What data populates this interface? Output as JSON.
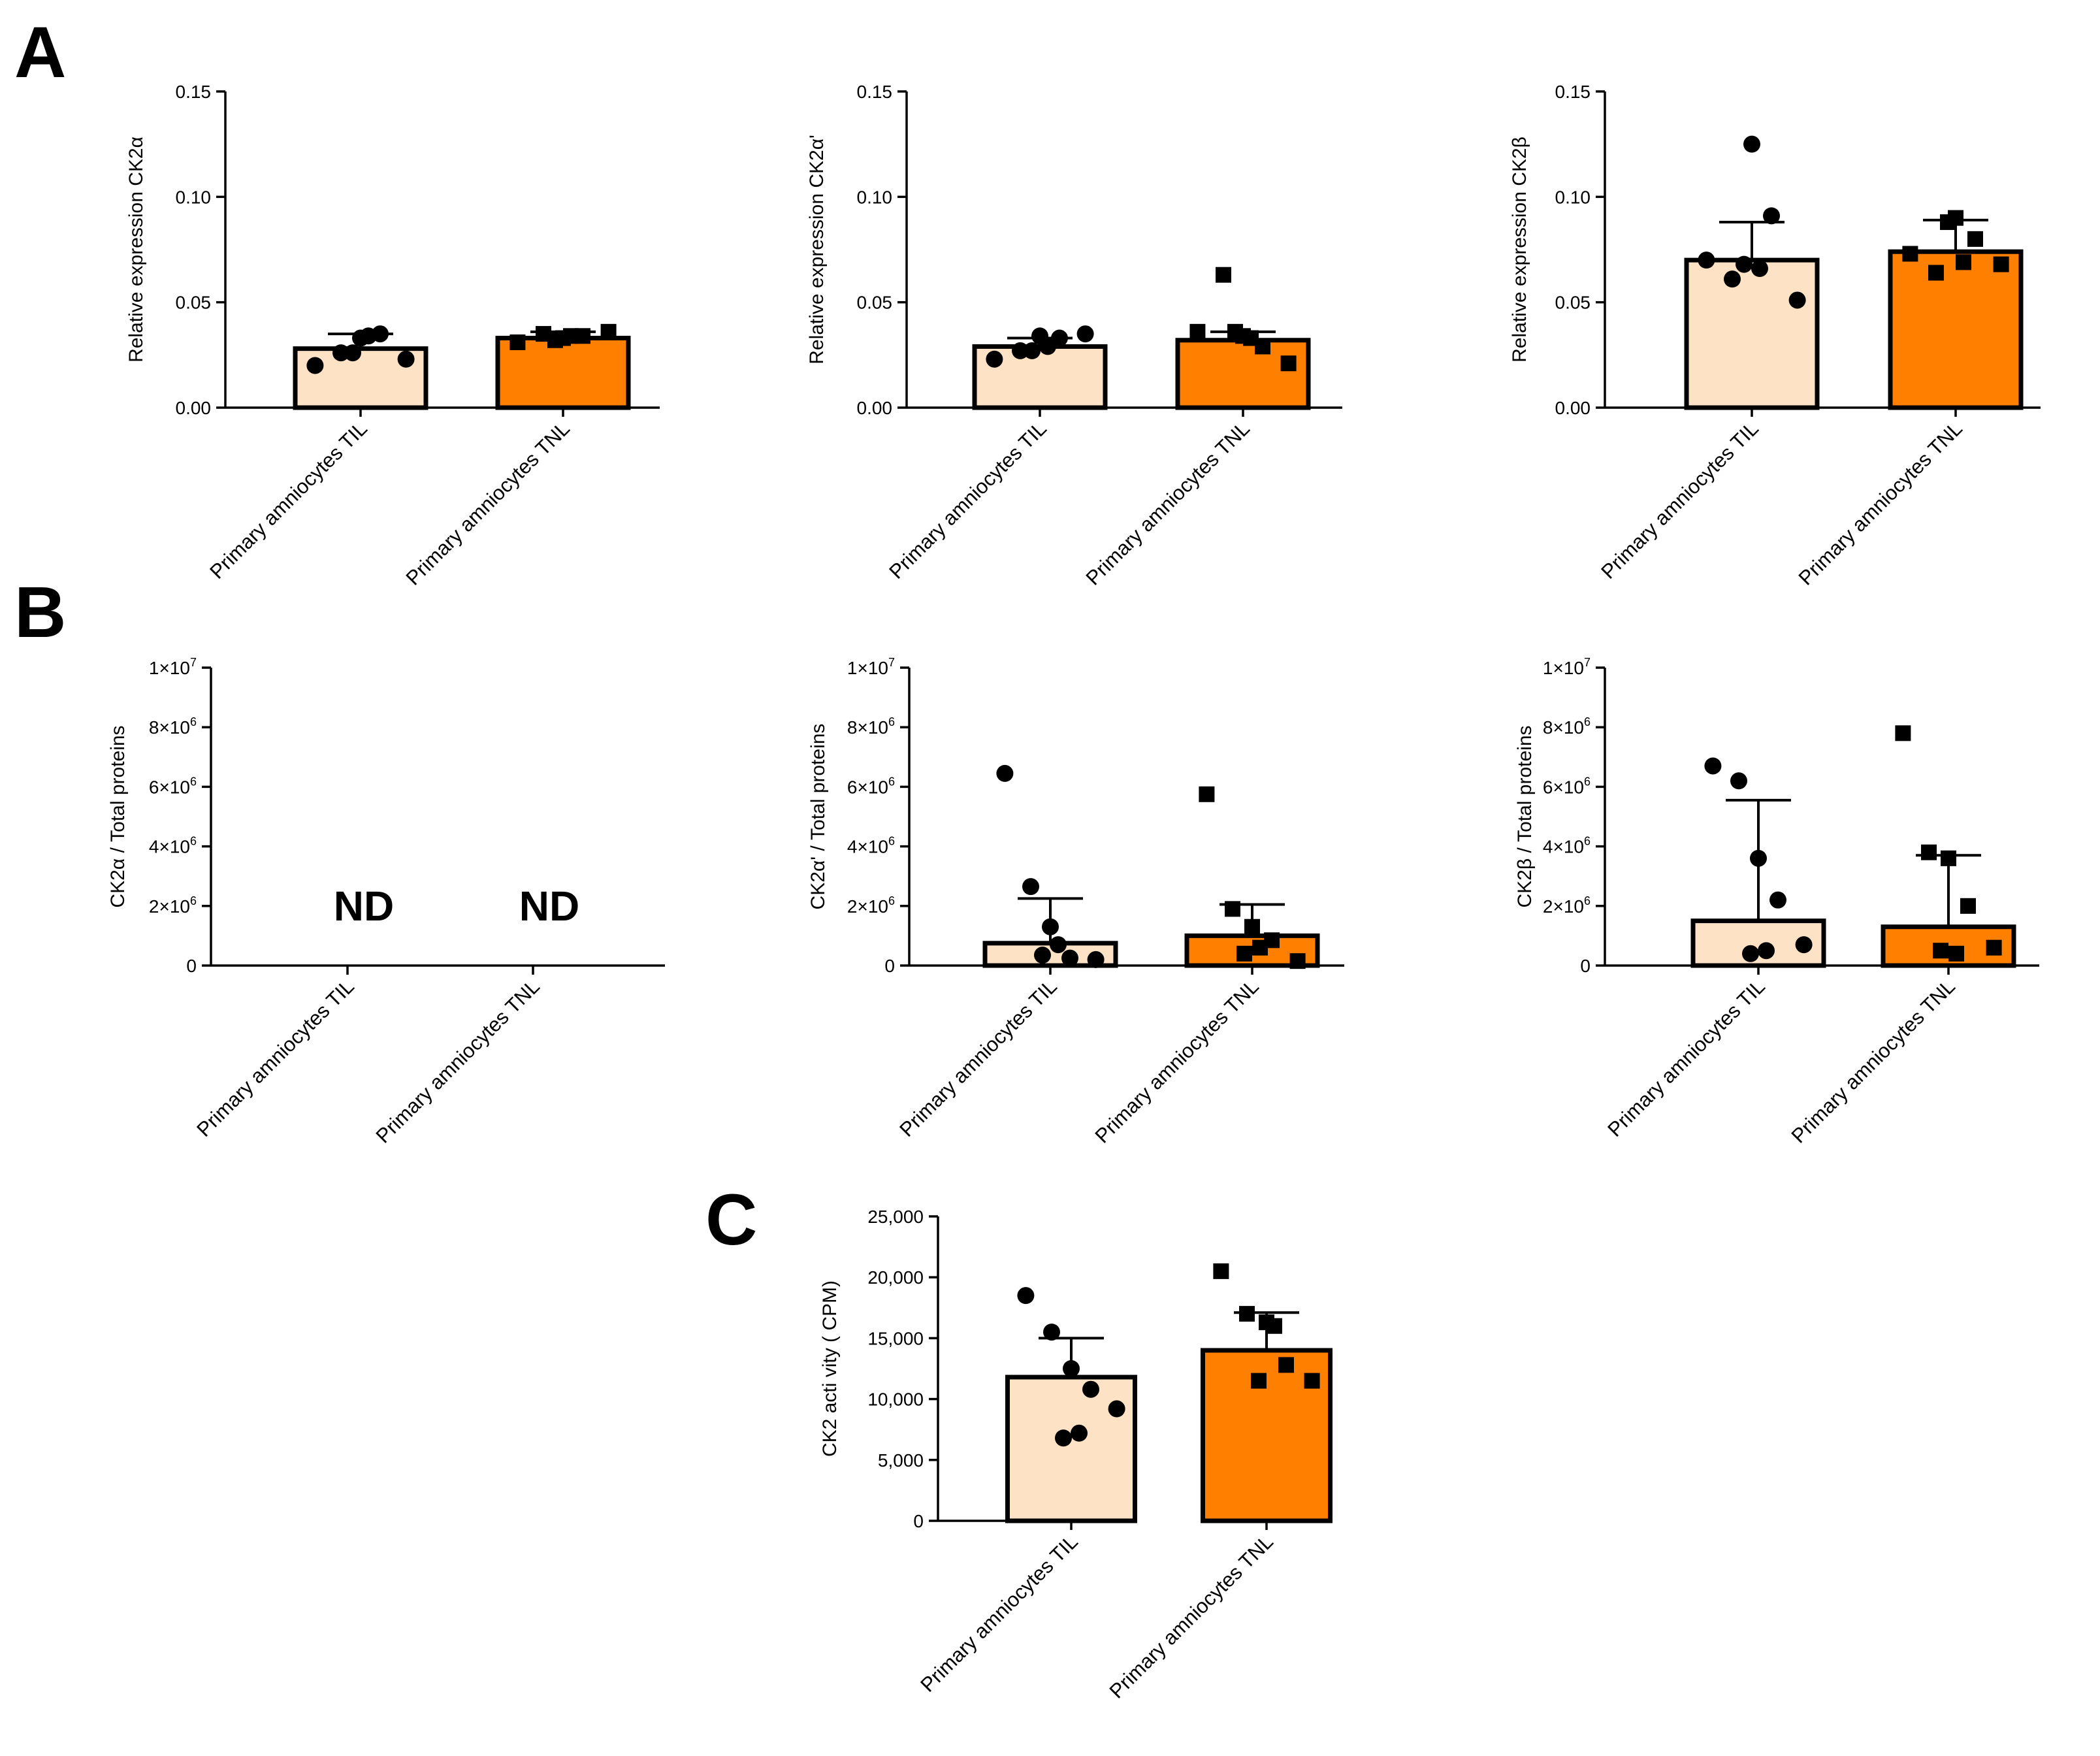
{
  "panels": {
    "A": "A",
    "B": "B",
    "C": "C"
  },
  "colors": {
    "til": "#FDE2C5",
    "tnl": "#FF8000",
    "stroke": "#000000"
  },
  "chart_data": [
    {
      "id": "A1",
      "panel": "A",
      "type": "bar",
      "ylabel": "Relative expression CK2α",
      "ylim": [
        0,
        0.15
      ],
      "yticks": [
        "0.00",
        "0.05",
        "0.10",
        "0.15"
      ],
      "categories": [
        "Primary amniocytes TIL",
        "Primary amniocytes TNL"
      ],
      "bar_colors": [
        "#FDE2C5",
        "#FF8000"
      ],
      "markers": [
        "circle",
        "square"
      ],
      "values": [
        0.028,
        0.033
      ],
      "sd": [
        0.007,
        0.003
      ],
      "points": [
        [
          0.02,
          0.026,
          0.033,
          0.035,
          0.023,
          0.026,
          0.034
        ],
        [
          0.031,
          0.035,
          0.033,
          0.034,
          0.036,
          0.032,
          0.034
        ]
      ]
    },
    {
      "id": "A2",
      "panel": "A",
      "type": "bar",
      "ylabel": "Relative expression CK2α'",
      "ylim": [
        0,
        0.15
      ],
      "yticks": [
        "0.00",
        "0.05",
        "0.10",
        "0.15"
      ],
      "categories": [
        "Primary amniocytes TIL",
        "Primary amniocytes TNL"
      ],
      "bar_colors": [
        "#FDE2C5",
        "#FF8000"
      ],
      "markers": [
        "circle",
        "square"
      ],
      "values": [
        0.029,
        0.032
      ],
      "sd": [
        0.004,
        0.004
      ],
      "points": [
        [
          0.023,
          0.027,
          0.034,
          0.033,
          0.035,
          0.027,
          0.029
        ],
        [
          0.036,
          0.063,
          0.034,
          0.029,
          0.021,
          0.036,
          0.033
        ]
      ]
    },
    {
      "id": "A3",
      "panel": "A",
      "type": "bar",
      "ylabel": "Relative expression CK2β",
      "ylim": [
        0,
        0.15
      ],
      "yticks": [
        "0.00",
        "0.05",
        "0.10",
        "0.15"
      ],
      "categories": [
        "Primary amniocytes TIL",
        "Primary amniocytes TNL"
      ],
      "bar_colors": [
        "#FDE2C5",
        "#FF8000"
      ],
      "markers": [
        "circle",
        "square"
      ],
      "values": [
        0.07,
        0.074
      ],
      "sd": [
        0.018,
        0.015
      ],
      "points": [
        [
          0.07,
          0.061,
          0.125,
          0.091,
          0.051,
          0.068,
          0.066
        ],
        [
          0.073,
          0.064,
          0.09,
          0.08,
          0.068,
          0.088,
          0.069
        ]
      ]
    },
    {
      "id": "B1",
      "panel": "B",
      "type": "bar",
      "ylabel": "CK2α / Total proteins",
      "ylim": [
        0,
        10000000
      ],
      "yticks": [
        "0",
        "2×10⁶",
        "4×10⁶",
        "6×10⁶",
        "8×10⁶",
        "1×10⁷"
      ],
      "categories": [
        "Primary amniocytes TIL",
        "Primary amniocytes TNL"
      ],
      "not_detected": true,
      "nd_label": "ND"
    },
    {
      "id": "B2",
      "panel": "B",
      "type": "bar",
      "ylabel": "CK2α' / Total proteins",
      "ylim": [
        0,
        10000000
      ],
      "yticks": [
        "0",
        "2×10⁶",
        "4×10⁶",
        "6×10⁶",
        "8×10⁶",
        "1×10⁷"
      ],
      "categories": [
        "Primary amniocytes TIL",
        "Primary amniocytes TNL"
      ],
      "bar_colors": [
        "#FDE2C5",
        "#FF8000"
      ],
      "markers": [
        "circle",
        "square"
      ],
      "values": [
        750000,
        1000000
      ],
      "sd": [
        1500000,
        1050000
      ],
      "points": [
        [
          6450000,
          2650000,
          1300000,
          250000,
          200000,
          350000,
          700000
        ],
        [
          5750000,
          1900000,
          1300000,
          850000,
          150000,
          400000,
          600000
        ]
      ]
    },
    {
      "id": "B3",
      "panel": "B",
      "type": "bar",
      "ylabel": "CK2β / Total proteins",
      "ylim": [
        0,
        10000000
      ],
      "yticks": [
        "0",
        "2×10⁶",
        "4×10⁶",
        "6×10⁶",
        "8×10⁶",
        "1×10⁷"
      ],
      "categories": [
        "Primary amniocytes TIL",
        "Primary amniocytes TNL"
      ],
      "bar_colors": [
        "#FDE2C5",
        "#FF8000"
      ],
      "markers": [
        "circle",
        "square"
      ],
      "values": [
        1500000,
        1300000
      ],
      "sd": [
        4050000,
        2400000
      ],
      "points": [
        [
          6700000,
          6200000,
          3600000,
          2200000,
          700000,
          400000,
          500000
        ],
        [
          7800000,
          3800000,
          3600000,
          2000000,
          600000,
          500000,
          400000
        ]
      ]
    },
    {
      "id": "C",
      "panel": "C",
      "type": "bar",
      "ylabel": "CK2 acti vity ( CPM)",
      "ylim": [
        0,
        25000
      ],
      "yticks": [
        "0",
        "5,000",
        "10,000",
        "15,000",
        "20,000",
        "25,000"
      ],
      "categories": [
        "Primary amniocytes TIL",
        "Primary amniocytes TNL"
      ],
      "bar_colors": [
        "#FDE2C5",
        "#FF8000"
      ],
      "markers": [
        "circle",
        "square"
      ],
      "values": [
        11800,
        14000
      ],
      "sd": [
        3200,
        3100
      ],
      "points": [
        [
          18500,
          15500,
          12500,
          10800,
          9200,
          6800,
          7200
        ],
        [
          20500,
          17000,
          16300,
          12800,
          11500,
          11500,
          16000
        ]
      ]
    }
  ]
}
